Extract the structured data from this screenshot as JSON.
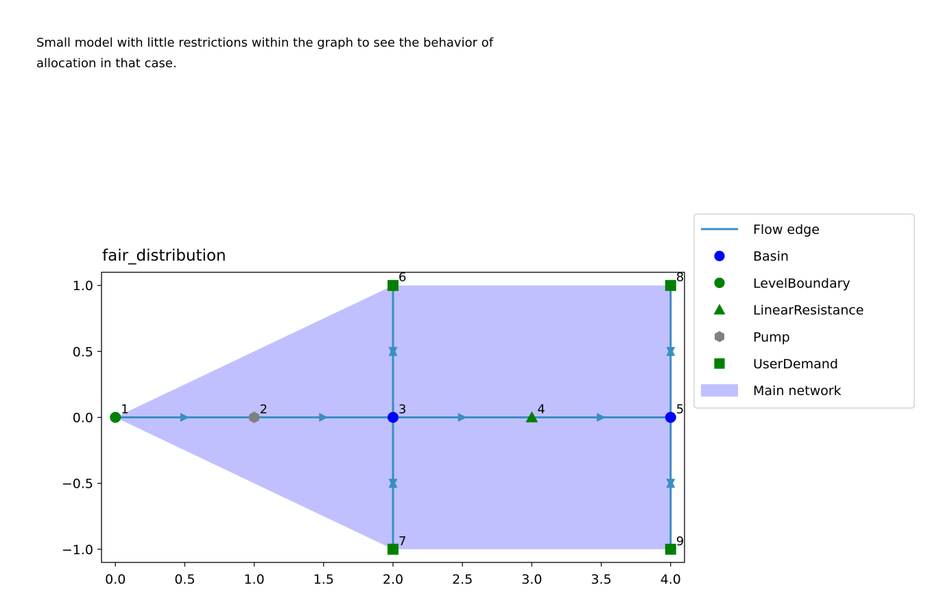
{
  "description": {
    "line1": "Small model with little restrictions within the graph to see the behavior of",
    "line2": "allocation in that case."
  },
  "chart_data": {
    "type": "scatter",
    "title": "fair_distribution",
    "xlabel": "",
    "ylabel": "",
    "xlim": [
      -0.1,
      4.1
    ],
    "ylim": [
      -1.1,
      1.1
    ],
    "xticks": [
      "0.0",
      "0.5",
      "1.0",
      "1.5",
      "2.0",
      "2.5",
      "3.0",
      "3.5",
      "4.0"
    ],
    "yticks": [
      "1.0",
      "0.5",
      "0.0",
      "−0.5",
      "−1.0"
    ],
    "grid": false,
    "legend_position": "outside-right",
    "main_network_polygon": [
      [
        0,
        0
      ],
      [
        2,
        1
      ],
      [
        4,
        1
      ],
      [
        4,
        -1
      ],
      [
        2,
        -1
      ]
    ],
    "nodes": [
      {
        "id": "1",
        "label": "1",
        "type": "LevelBoundary",
        "x": 0,
        "y": 0
      },
      {
        "id": "2",
        "label": "2",
        "type": "Pump",
        "x": 1,
        "y": 0
      },
      {
        "id": "3",
        "label": "3",
        "type": "Basin",
        "x": 2,
        "y": 0
      },
      {
        "id": "4",
        "label": "4",
        "type": "LinearResistance",
        "x": 3,
        "y": 0
      },
      {
        "id": "5",
        "label": "5",
        "type": "Basin",
        "x": 4,
        "y": 0
      },
      {
        "id": "6",
        "label": "6",
        "type": "UserDemand",
        "x": 2,
        "y": 1
      },
      {
        "id": "7",
        "label": "7",
        "type": "UserDemand",
        "x": 2,
        "y": -1
      },
      {
        "id": "8",
        "label": "8",
        "type": "UserDemand",
        "x": 4,
        "y": 1
      },
      {
        "id": "9",
        "label": "9",
        "type": "UserDemand",
        "x": 4,
        "y": -1
      }
    ],
    "edges": [
      {
        "from": "1",
        "to": "2",
        "arrow": "right"
      },
      {
        "from": "2",
        "to": "3",
        "arrow": "right"
      },
      {
        "from": "3",
        "to": "4",
        "arrow": "right"
      },
      {
        "from": "4",
        "to": "5",
        "arrow": "right"
      },
      {
        "from": "3",
        "to": "6",
        "arrow": "bidirectional"
      },
      {
        "from": "3",
        "to": "7",
        "arrow": "bidirectional"
      },
      {
        "from": "5",
        "to": "8",
        "arrow": "bidirectional"
      },
      {
        "from": "5",
        "to": "9",
        "arrow": "bidirectional"
      }
    ],
    "legend": [
      {
        "label": "Flow edge",
        "kind": "line",
        "color": "#3a8ec2"
      },
      {
        "label": "Basin",
        "kind": "circle",
        "color": "#0000ff"
      },
      {
        "label": "LevelBoundary",
        "kind": "circle",
        "color": "#008000"
      },
      {
        "label": "LinearResistance",
        "kind": "triangle",
        "color": "#008000"
      },
      {
        "label": "Pump",
        "kind": "hexagon",
        "color": "#808080"
      },
      {
        "label": "UserDemand",
        "kind": "square",
        "color": "#008000"
      },
      {
        "label": "Main network",
        "kind": "patch",
        "color": "#c0c0ff"
      }
    ],
    "colors": {
      "edge": "#3a8ec2",
      "network_fill": "#c0c0ff",
      "Basin": "#0000ff",
      "LevelBoundary": "#008000",
      "LinearResistance": "#008000",
      "Pump": "#808080",
      "UserDemand": "#008000"
    }
  }
}
